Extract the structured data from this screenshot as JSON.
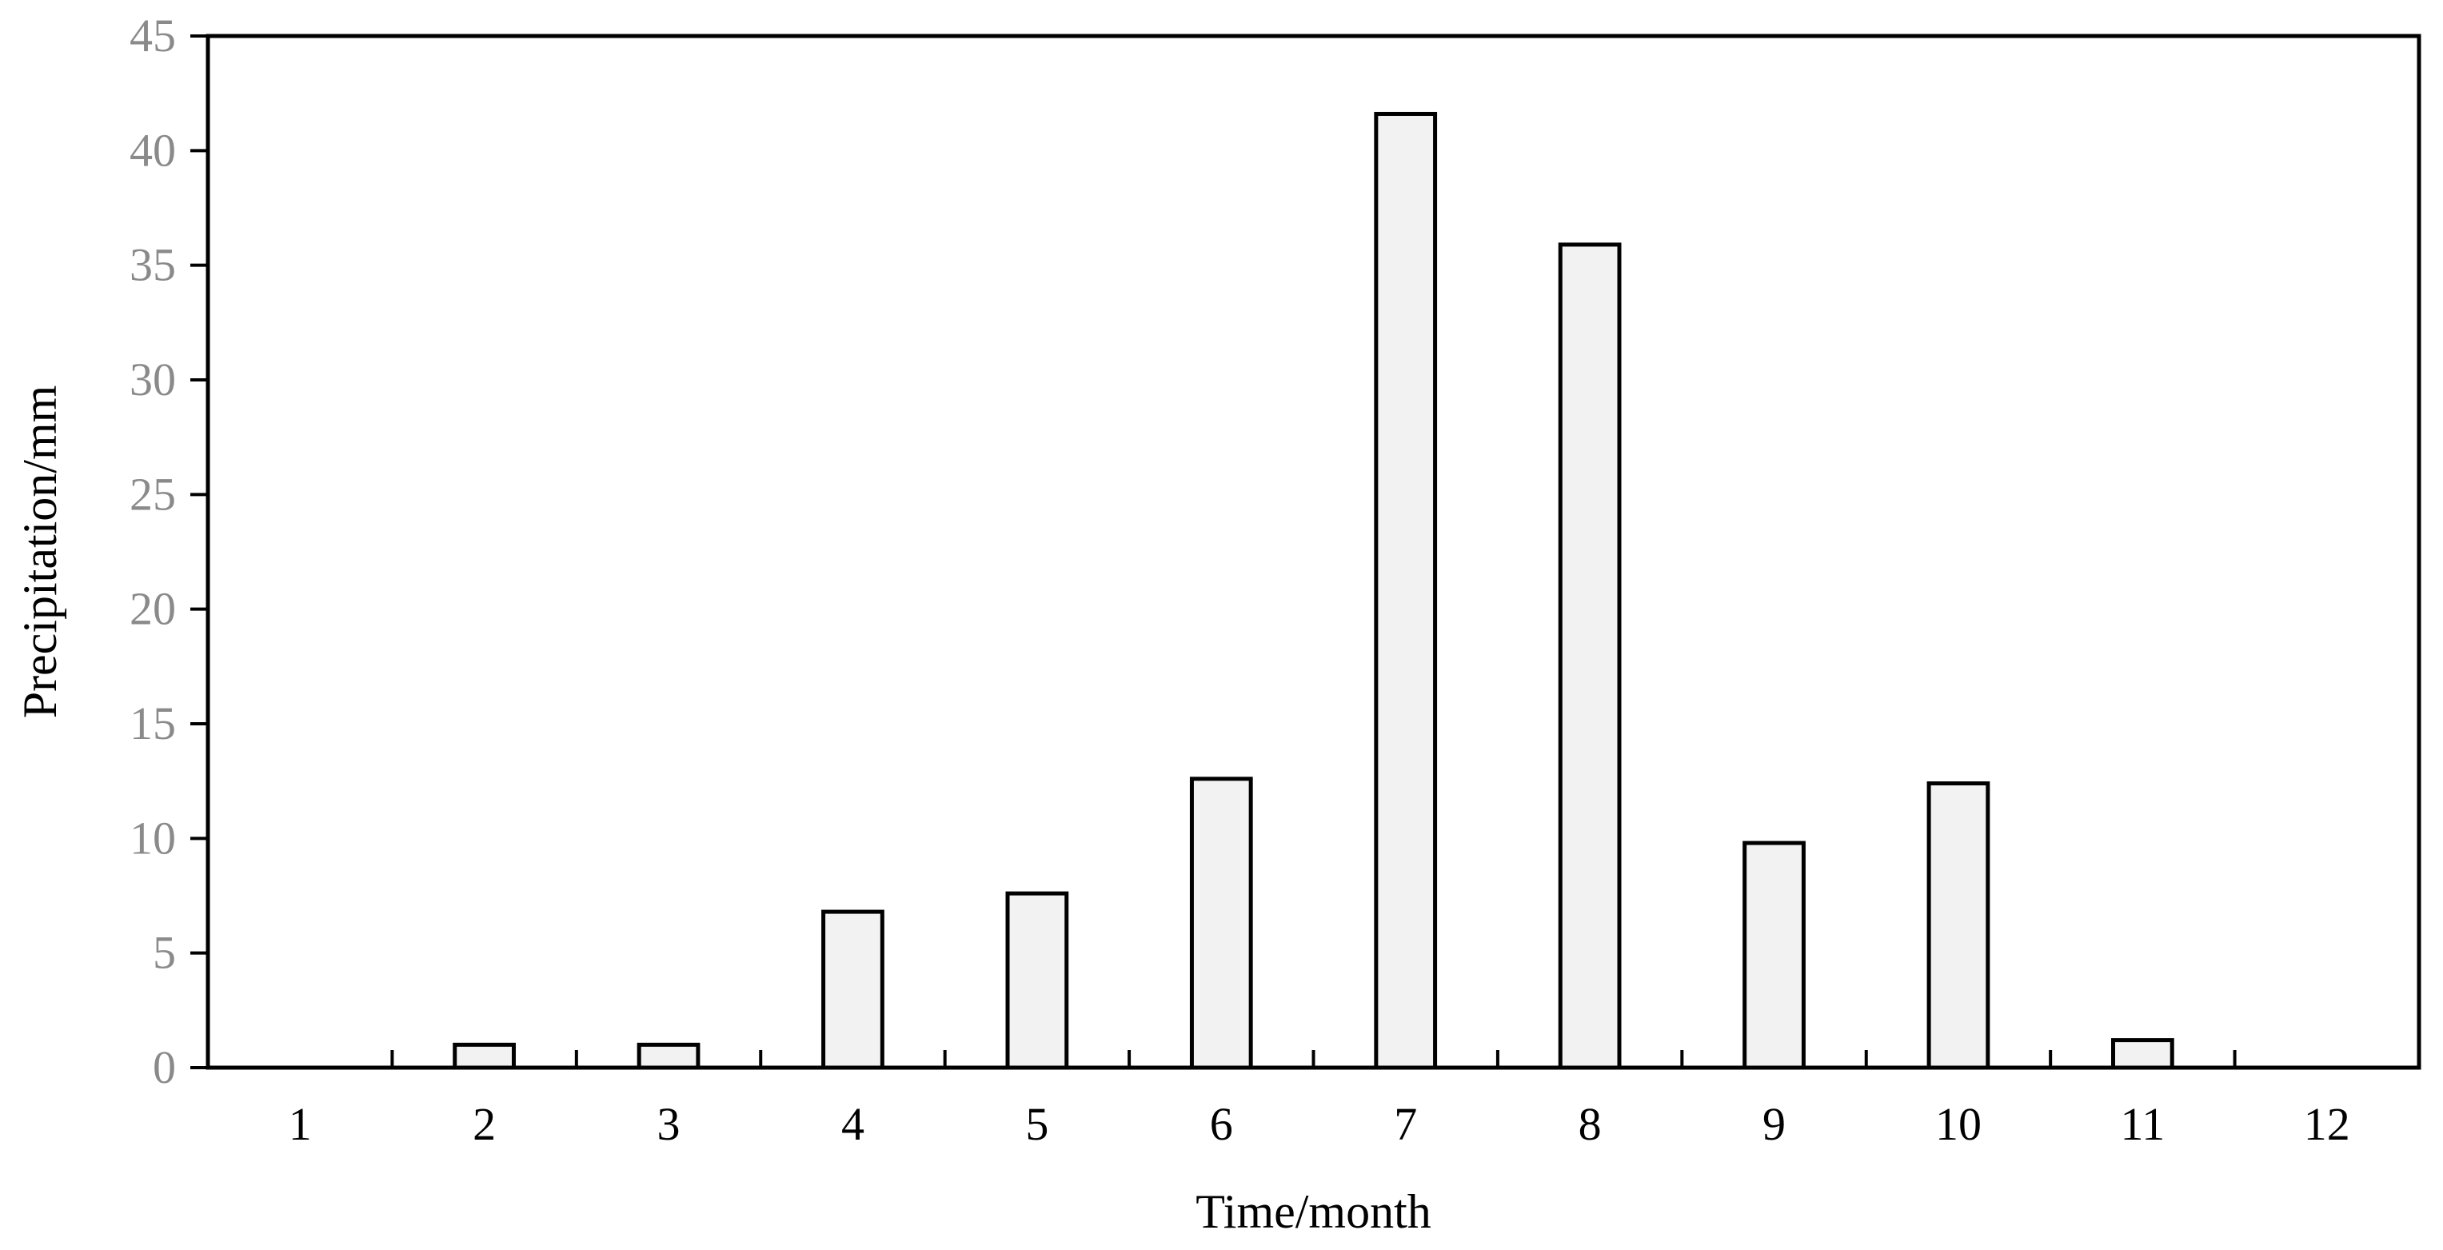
{
  "chart_data": {
    "type": "bar",
    "categories": [
      "1",
      "2",
      "3",
      "4",
      "5",
      "6",
      "7",
      "8",
      "9",
      "10",
      "11",
      "12"
    ],
    "values": [
      0,
      1.0,
      1.0,
      6.8,
      7.6,
      12.6,
      41.6,
      35.9,
      9.8,
      12.4,
      1.2,
      0
    ],
    "xlabel": "Time/month",
    "ylabel": "Precipitation/mm",
    "ylim": [
      0,
      45
    ],
    "yticks": [
      "0",
      "5",
      "10",
      "15",
      "20",
      "25",
      "30",
      "35",
      "40",
      "45"
    ],
    "grid": false,
    "legend": "none",
    "colors": {
      "bar_fill": "#f2f2f2",
      "bar_stroke": "#000000",
      "axis": "#000000",
      "y_tick_label": "#8a8a8a",
      "x_tick_label": "#000000"
    }
  }
}
